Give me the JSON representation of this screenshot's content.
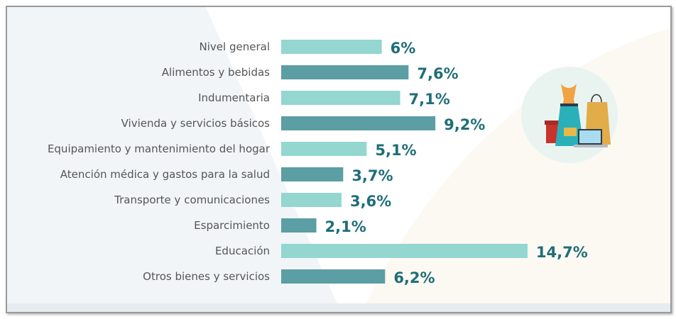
{
  "chart_data": {
    "type": "bar",
    "orientation": "horizontal",
    "categories": [
      "Nivel general",
      "Alimentos y bebidas",
      "Indumentaria",
      "Vivienda y servicios básicos",
      "Equipamiento y mantenimiento del hogar",
      "Atención médica y gastos para la salud",
      "Transporte y comunicaciones",
      "Esparcimiento",
      "Educación",
      "Otros bienes y servicios"
    ],
    "values": [
      6,
      7.6,
      7.1,
      9.2,
      5.1,
      3.7,
      3.6,
      2.1,
      14.7,
      6.2
    ],
    "value_labels": [
      "6%",
      "7,6%",
      "7,1%",
      "9,2%",
      "5,1%",
      "3,7%",
      "3,6%",
      "2,1%",
      "14,7%",
      "6,2%"
    ],
    "colors": {
      "light": "#94d6d0",
      "dark": "#5b9ea3",
      "label": "#1f6e78"
    },
    "grid": false,
    "illustration_icon": "shopping-illustration-icon"
  }
}
